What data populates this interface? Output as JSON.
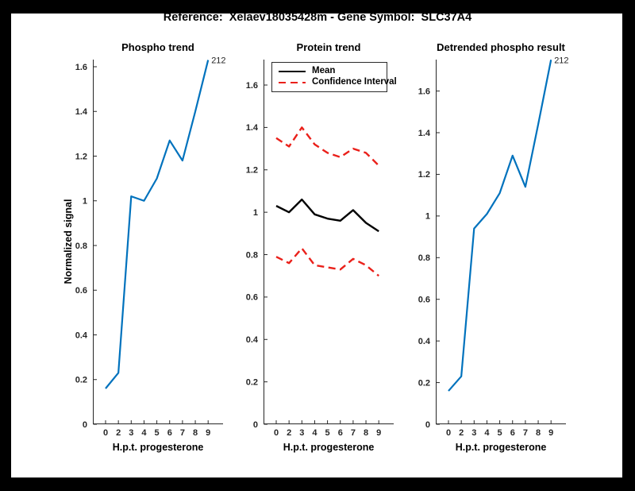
{
  "window": {
    "frame_color": "#000000",
    "canvas_color": "#ffffff"
  },
  "header": {
    "title": "Reference:  Xelaev18035428m - Gene Symbol:  SLC37A4"
  },
  "colors": {
    "matlab_blue": "#0072bd",
    "matlab_red": "#ea201a",
    "line_black": "#000000",
    "axis_gray": "#262626"
  },
  "chart_data": [
    {
      "type": "line",
      "title": "Phospho trend",
      "xlabel": "H.p.t. progesterone",
      "ylabel": "Normalized signal",
      "x_tick_labels": [
        "0",
        "2",
        "3",
        "4",
        "5",
        "6",
        "7",
        "8",
        "9"
      ],
      "y_tick_values": [
        0,
        0.2,
        0.4,
        0.6,
        0.8,
        1,
        1.2,
        1.4,
        1.6
      ],
      "y_tick_labels": [
        "0",
        "0.2",
        "0.4",
        "0.6",
        "0.8",
        "1",
        "1.2",
        "1.4",
        "1.6"
      ],
      "ylim": [
        0,
        1.632
      ],
      "grid": false,
      "legend": null,
      "series": [
        {
          "name": "phospho_signal",
          "color_key": "matlab_blue",
          "dash": null,
          "width": 2.2,
          "values": [
            0.16,
            0.23,
            1.02,
            1.0,
            1.1,
            1.27,
            1.18,
            1.4,
            1.63
          ]
        }
      ],
      "annotation": {
        "text": "212",
        "series": 0,
        "point": "last"
      }
    },
    {
      "type": "line",
      "title": "Protein trend",
      "xlabel": "H.p.t. progesterone",
      "ylabel": null,
      "x_tick_labels": [
        "0",
        "2",
        "3",
        "4",
        "5",
        "6",
        "7",
        "8",
        "9"
      ],
      "y_tick_values": [
        0,
        0.2,
        0.4,
        0.6,
        0.8,
        1,
        1.2,
        1.4,
        1.6
      ],
      "y_tick_labels": [
        "0",
        "0.2",
        "0.4",
        "0.6",
        "0.8",
        "1",
        "1.2",
        "1.4",
        "1.6"
      ],
      "ylim": [
        0,
        1.72
      ],
      "grid": false,
      "legend": {
        "position": "top-left",
        "items": [
          {
            "label": "Mean",
            "color_key": "line_black",
            "dash": false
          },
          {
            "label": "Confidence Interval",
            "color_key": "matlab_red",
            "dash": true
          }
        ]
      },
      "series": [
        {
          "name": "mean",
          "color_key": "line_black",
          "dash": null,
          "width": 2.4,
          "values": [
            1.03,
            1.0,
            1.06,
            0.99,
            0.97,
            0.96,
            1.01,
            0.95,
            0.91
          ]
        },
        {
          "name": "ci_upper",
          "color_key": "matlab_red",
          "dash": "9 5.5",
          "width": 2.4,
          "values": [
            1.35,
            1.31,
            1.4,
            1.32,
            1.28,
            1.26,
            1.3,
            1.28,
            1.22
          ]
        },
        {
          "name": "ci_lower",
          "color_key": "matlab_red",
          "dash": "9 5.5",
          "width": 2.4,
          "values": [
            0.79,
            0.76,
            0.83,
            0.75,
            0.74,
            0.73,
            0.78,
            0.75,
            0.7
          ]
        }
      ],
      "annotation": null
    },
    {
      "type": "line",
      "title": "Detrended phospho result",
      "xlabel": "H.p.t. progesterone",
      "ylabel": null,
      "x_tick_labels": [
        "0",
        "2",
        "3",
        "4",
        "5",
        "6",
        "7",
        "8",
        "9"
      ],
      "y_tick_values": [
        0,
        0.2,
        0.4,
        0.6,
        0.8,
        1,
        1.2,
        1.4,
        1.6
      ],
      "y_tick_labels": [
        "0",
        "0.2",
        "0.4",
        "0.6",
        "0.8",
        "1",
        "1.2",
        "1.4",
        "1.6"
      ],
      "ylim": [
        0,
        1.751
      ],
      "grid": false,
      "legend": null,
      "series": [
        {
          "name": "detrended_phospho",
          "color_key": "matlab_blue",
          "dash": null,
          "width": 2.2,
          "values": [
            0.16,
            0.23,
            0.94,
            1.01,
            1.11,
            1.29,
            1.14,
            1.44,
            1.75
          ]
        }
      ],
      "annotation": {
        "text": "212",
        "series": 0,
        "point": "last"
      }
    }
  ]
}
